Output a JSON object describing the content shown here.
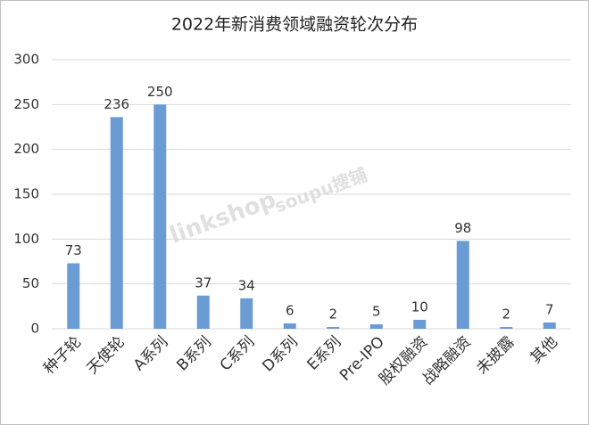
{
  "chart_data": {
    "type": "bar",
    "title": "2022年新消费领域融资轮次分布",
    "categories": [
      "种子轮",
      "天使轮",
      "A系列",
      "B系列",
      "C系列",
      "D系列",
      "E系列",
      "Pre-IPO",
      "股权融资",
      "战略融资",
      "未披露",
      "其他"
    ],
    "values": [
      73,
      236,
      250,
      37,
      34,
      6,
      2,
      5,
      10,
      98,
      2,
      7
    ],
    "color": "#6a9bd3",
    "ylim": [
      0,
      300
    ],
    "yticks": [
      0,
      50,
      100,
      150,
      200,
      250,
      300
    ],
    "grid": true,
    "watermarks": [
      "linkshop",
      "soupu搜铺"
    ]
  }
}
